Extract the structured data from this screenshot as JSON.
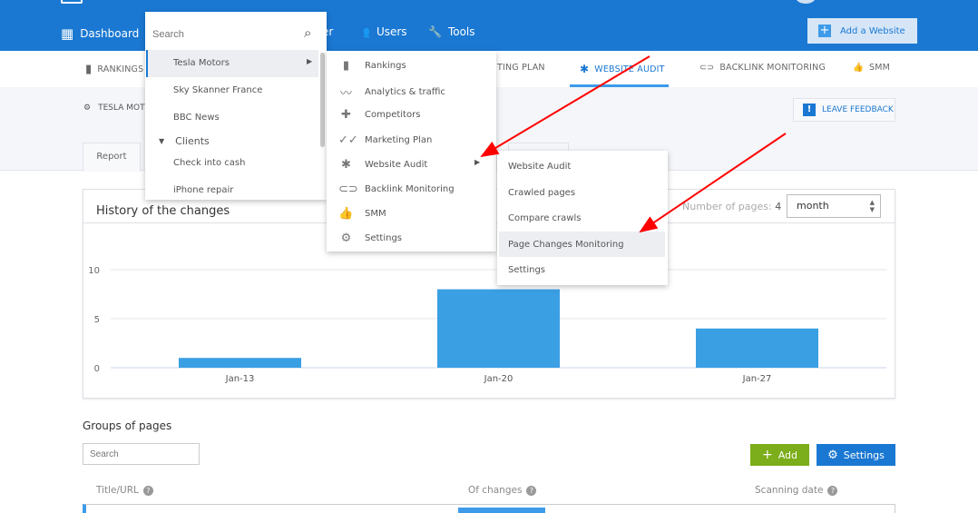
{
  "header": {
    "nav": [
      {
        "label": "Dashboard",
        "icon": "dashboard-icon"
      },
      {
        "label": "er",
        "icon": ""
      },
      {
        "label": "Users",
        "icon": "users-icon"
      },
      {
        "label": "Tools",
        "icon": "wrench-icon"
      }
    ],
    "add_website": "Add a Website"
  },
  "subnav": {
    "items": [
      {
        "label": "RANKINGS",
        "icon": "bar-chart-icon"
      },
      {
        "label": "TING PLAN",
        "icon": ""
      },
      {
        "label": "WEBSITE AUDIT",
        "icon": "bug-icon",
        "active": true
      },
      {
        "label": "BACKLINK MONITORING",
        "icon": "link-icon"
      },
      {
        "label": "SMM",
        "icon": "thumbs-icon"
      }
    ]
  },
  "breadcrumb": {
    "label": "TESLA MOTO"
  },
  "feedback": "LEAVE FEEDBACK",
  "tabs": {
    "report": "Report"
  },
  "chart_card": {
    "title": "History of the changes",
    "npages_label": "Number of pages:",
    "npages_value": "4",
    "period": "month"
  },
  "chart_data": {
    "type": "bar",
    "title": "",
    "categories": [
      "Jan-13",
      "Jan-20",
      "Jan-27"
    ],
    "values": [
      1,
      8,
      4
    ],
    "yticks": [
      "0",
      "5",
      "10"
    ],
    "ylim": [
      0,
      10
    ],
    "grid": true,
    "color": "#3a9fe3"
  },
  "groups": {
    "title": "Groups of pages",
    "search_placeholder": "Search",
    "add": "Add",
    "settings": "Settings",
    "columns": [
      "Title/URL",
      "Of changes",
      "Scanning date"
    ]
  },
  "dropdown1": {
    "search_placeholder": "Search",
    "items": [
      "Tesla Motors",
      "Sky Skanner France",
      "BBC News"
    ],
    "group": "Clients",
    "group_items": [
      "Check into cash",
      "iPhone repair"
    ]
  },
  "dropdown2": {
    "items": [
      {
        "label": "Rankings",
        "icon": "bar-chart-icon"
      },
      {
        "label": "Analytics & traffic",
        "icon": "trend-icon"
      },
      {
        "label": "Competitors",
        "icon": "competitors-icon"
      },
      {
        "label": "Marketing Plan",
        "icon": "double-check-icon"
      },
      {
        "label": "Website Audit",
        "icon": "bug-icon"
      },
      {
        "label": "Backlink Monitoring",
        "icon": "link-icon"
      },
      {
        "label": "SMM",
        "icon": "thumbs-icon"
      },
      {
        "label": "Settings",
        "icon": "gear-icon"
      }
    ]
  },
  "dropdown3": {
    "items": [
      "Website Audit",
      "Crawled pages",
      "Compare crawls",
      "Page Changes Monitoring",
      "Settings"
    ]
  },
  "colors": {
    "header": "#1a78d2",
    "accent": "#3d9be9",
    "add": "#7cad1a",
    "arrow": "#ff0000"
  }
}
